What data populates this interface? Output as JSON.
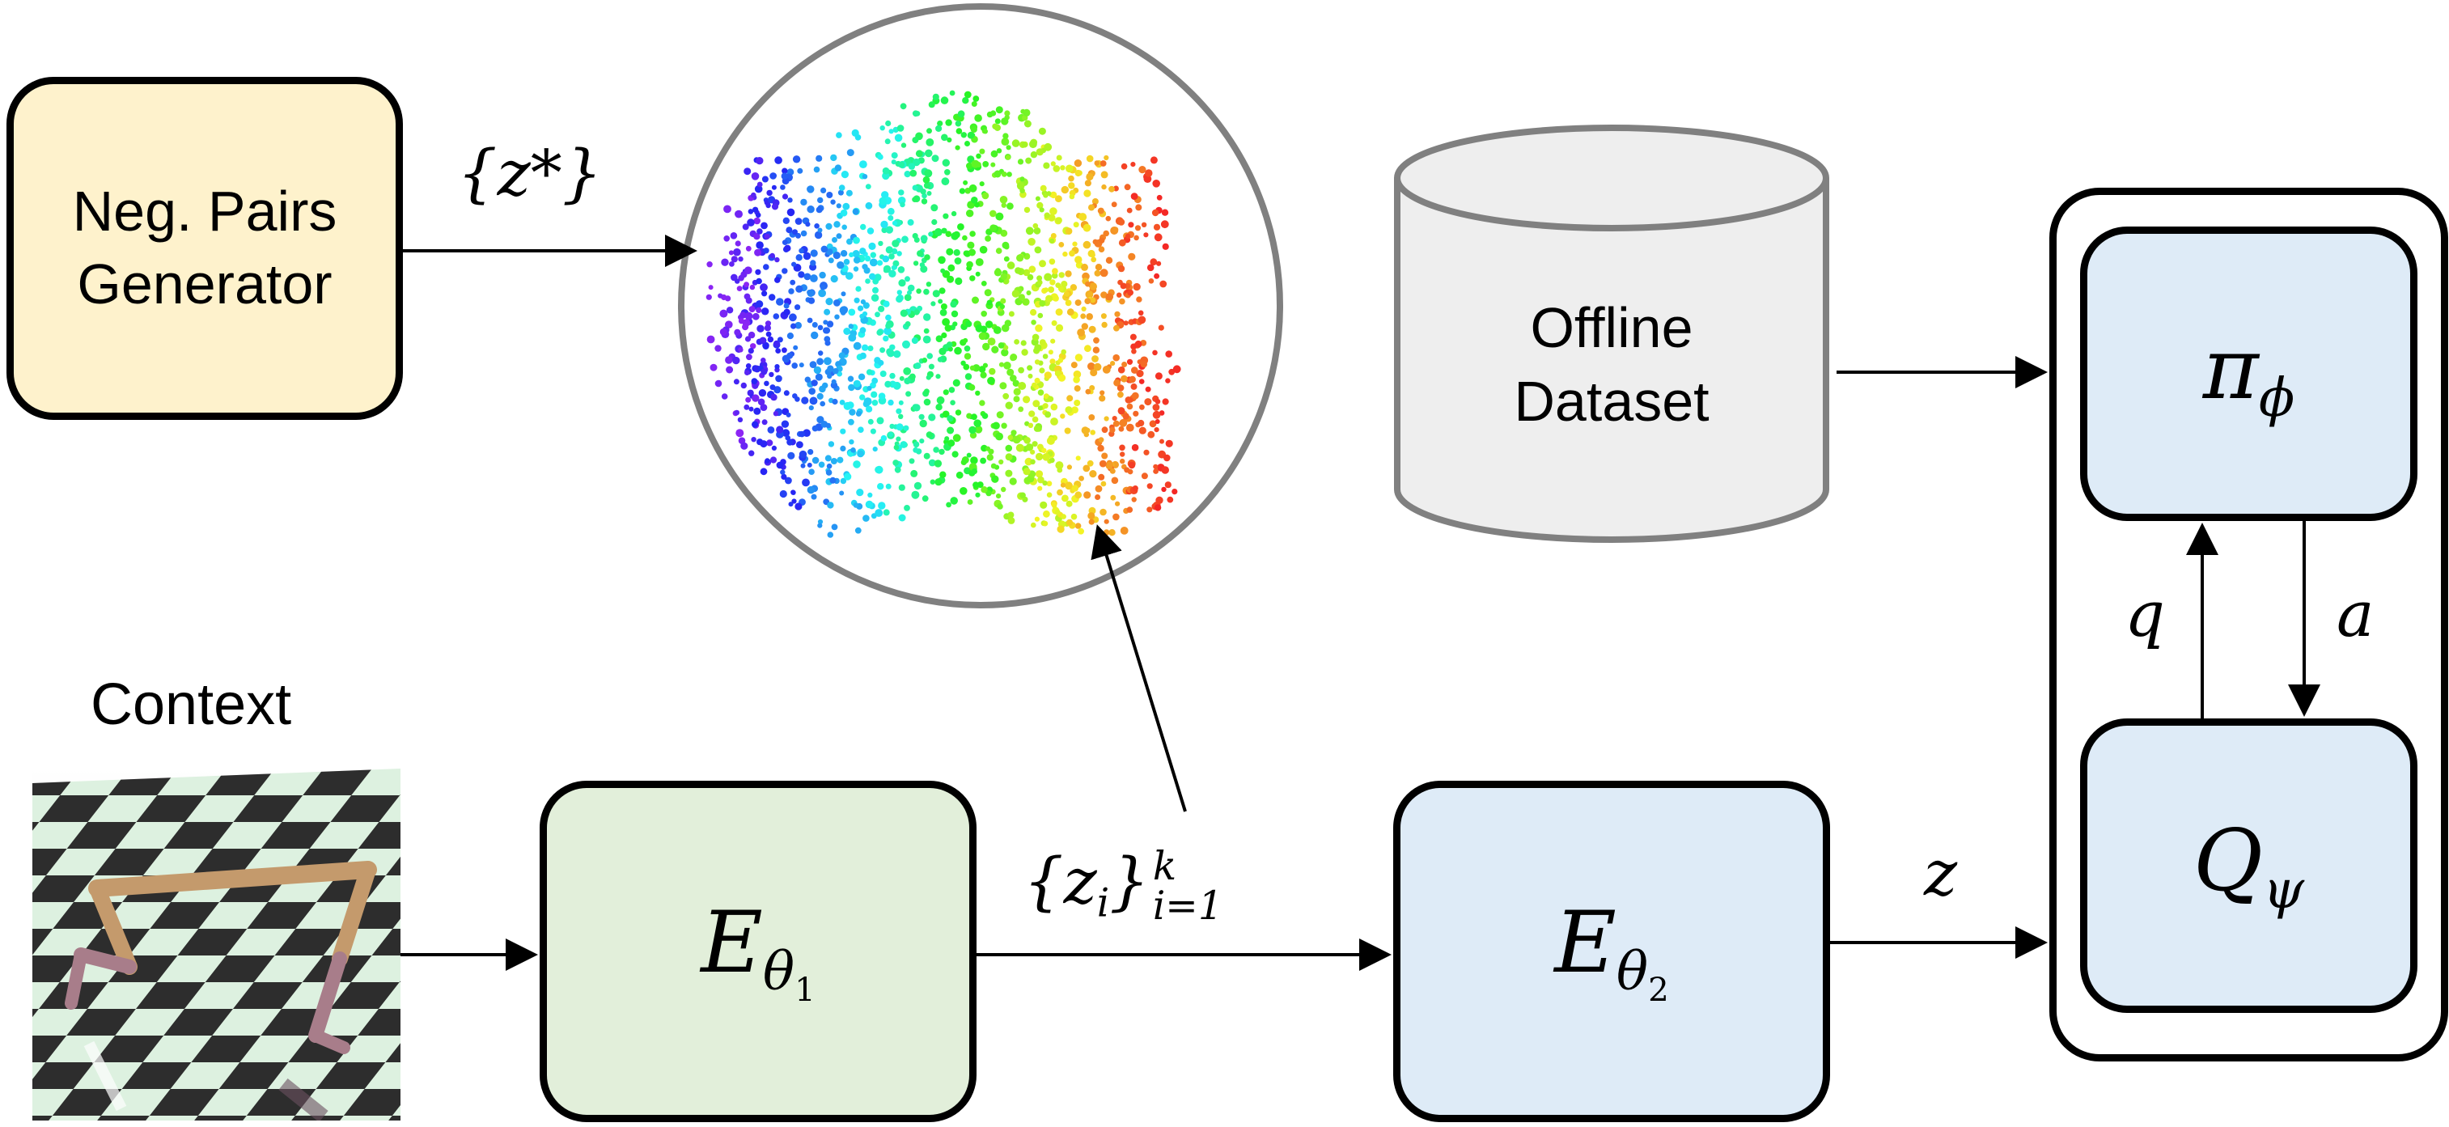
{
  "nodes": {
    "neg_pairs_generator": "Neg. Pairs\nGenerator",
    "offline_dataset": "Offline\nDataset",
    "context_label": "Context",
    "encoder1": {
      "base": "E",
      "sub": "θ",
      "subsub": "1"
    },
    "encoder2": {
      "base": "E",
      "sub": "θ",
      "subsub": "2"
    },
    "policy": {
      "base": "π",
      "sub": "ϕ"
    },
    "qfunc": {
      "base": "Q",
      "sub": "ψ"
    }
  },
  "edges": {
    "z_star": "{z*}",
    "zi_set": {
      "open": "{z",
      "sub_i": "i",
      "close": "}",
      "sup": "k",
      "sub": "i=1"
    },
    "z": "z",
    "q": "q",
    "a": "a"
  },
  "colors": {
    "generator_fill": "#fef2cc",
    "encoder1_fill": "#e2efda",
    "encoder2_fill": "#deebf7",
    "policy_fill": "#deebf7",
    "dataset_fill": "#eeeeee",
    "circle_border": "#808080"
  }
}
